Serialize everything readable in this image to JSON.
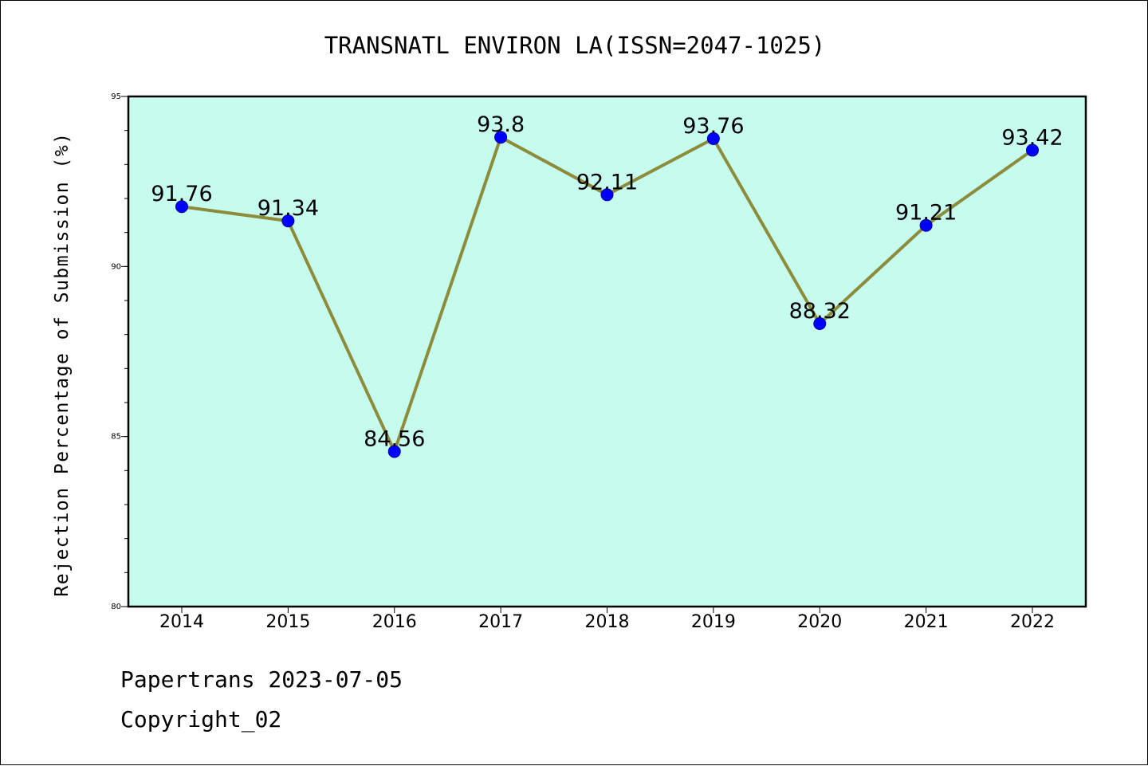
{
  "chart_data": {
    "type": "line",
    "title": "TRANSNATL ENVIRON LA(ISSN=2047-1025)",
    "ylabel": "Rejection Percentage of Submission (%)",
    "xlabel": "",
    "categories": [
      "2014",
      "2015",
      "2016",
      "2017",
      "2018",
      "2019",
      "2020",
      "2021",
      "2022"
    ],
    "series": [
      {
        "values": [
          91.76,
          91.34,
          84.56,
          93.8,
          92.11,
          93.76,
          88.32,
          91.21,
          93.42
        ],
        "labels": [
          "91.76",
          "91.34",
          "84.56",
          "93.8",
          "92.11",
          "93.76",
          "88.32",
          "91.21",
          "93.42"
        ]
      }
    ],
    "ylim": [
      80,
      95
    ],
    "yticks": [
      "80",
      "85",
      "90",
      "95"
    ],
    "grid": false,
    "colors": {
      "plot_background": "#c6fcee",
      "line": "#8c8c3a",
      "marker_fill": "#0000ff",
      "marker_edge": "#0000a0"
    }
  },
  "footer": {
    "line1": "Papertrans 2023-07-05",
    "line2": "Copyright_02"
  }
}
